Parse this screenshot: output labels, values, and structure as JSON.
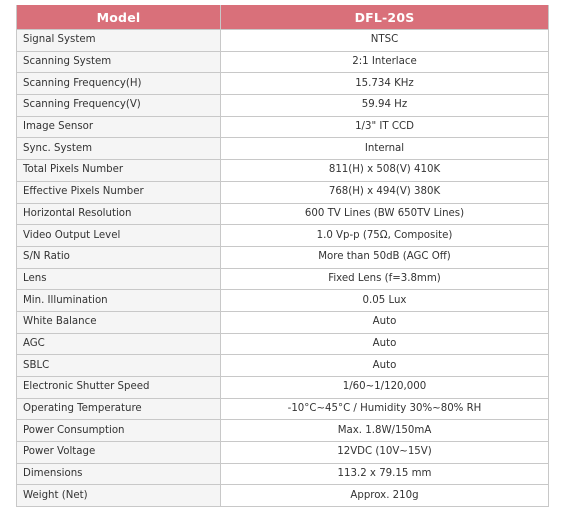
{
  "header": {
    "model_label": "Model",
    "model_value": "DFL-20S"
  },
  "rows": [
    {
      "label": "Signal System",
      "value": "NTSC"
    },
    {
      "label": "Scanning System",
      "value": "2:1 Interlace"
    },
    {
      "label": "Scanning Frequency(H)",
      "value": "15.734 KHz"
    },
    {
      "label": "Scanning Frequency(V)",
      "value": "59.94 Hz"
    },
    {
      "label": "Image Sensor",
      "value": "1/3\" IT CCD"
    },
    {
      "label": "Sync. System",
      "value": "Internal"
    },
    {
      "label": "Total Pixels Number",
      "value": "811(H) x 508(V) 410K"
    },
    {
      "label": "Effective Pixels Number",
      "value": "768(H) x 494(V) 380K"
    },
    {
      "label": "Horizontal Resolution",
      "value": "600 TV Lines (BW 650TV Lines)"
    },
    {
      "label": "Video Output Level",
      "value": "1.0 Vp-p (75Ω, Composite)"
    },
    {
      "label": "S/N Ratio",
      "value": "More than 50dB (AGC Off)"
    },
    {
      "label": "Lens",
      "value": "Fixed Lens (f=3.8mm)"
    },
    {
      "label": "Min. Illumination",
      "value": "0.05 Lux"
    },
    {
      "label": "White Balance",
      "value": "Auto"
    },
    {
      "label": "AGC",
      "value": "Auto"
    },
    {
      "label": "SBLC",
      "value": "Auto"
    },
    {
      "label": "Electronic Shutter Speed",
      "value": "1/60~1/120,000"
    },
    {
      "label": "Operating Temperature",
      "value": "-10°C~45°C / Humidity 30%~80% RH"
    },
    {
      "label": "Power Consumption",
      "value": "Max. 1.8W/150mA"
    },
    {
      "label": "Power Voltage",
      "value": "12VDC (10V~15V)"
    },
    {
      "label": "Dimensions",
      "value": "113.2 x 79.15 mm"
    },
    {
      "label": "Weight (Net)",
      "value": "Approx. 210g"
    }
  ],
  "colors": {
    "header_bg": "#d9707a",
    "label_bg": "#f5f5f5",
    "border": "#c8c8c8"
  }
}
